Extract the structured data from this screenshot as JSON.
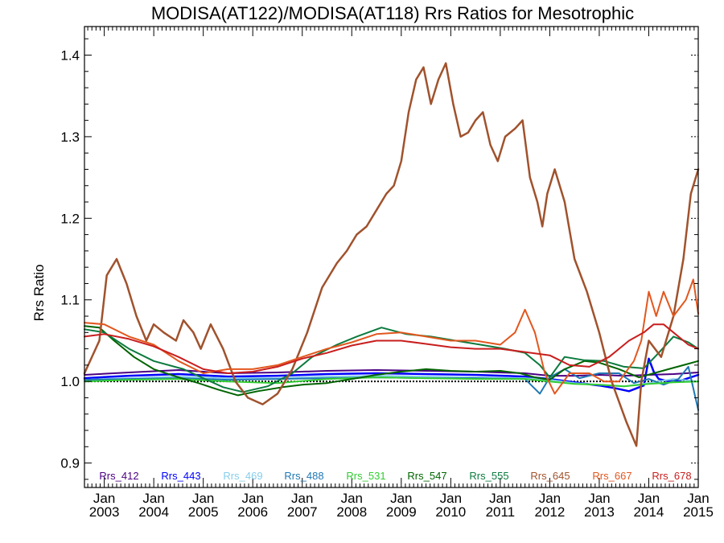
{
  "chart_data": {
    "type": "line",
    "title": "MODISA(AT122)/MODISA(AT118)  Rrs Ratios for Mesotrophic",
    "ylabel": "Rrs Ratio",
    "xlabel": "",
    "xlim": [
      2002.6,
      2015.0
    ],
    "ylim": [
      0.87,
      1.435
    ],
    "yticks": [
      0.9,
      1.0,
      1.1,
      1.2,
      1.3,
      1.4
    ],
    "ytick_labels": [
      "0.9",
      "1.0",
      "1.1",
      "1.2",
      "1.3",
      "1.4"
    ],
    "xticks": [
      2003,
      2004,
      2005,
      2006,
      2007,
      2008,
      2009,
      2010,
      2011,
      2012,
      2013,
      2014,
      2015
    ],
    "xtick_labels_top": [
      "Jan",
      "Jan",
      "Jan",
      "Jan",
      "Jan",
      "Jan",
      "Jan",
      "Jan",
      "Jan",
      "Jan",
      "Jan",
      "Jan",
      "Jan"
    ],
    "xtick_labels_bottom": [
      "2003",
      "2004",
      "2005",
      "2006",
      "2007",
      "2008",
      "2009",
      "2010",
      "2011",
      "2012",
      "2013",
      "2014",
      "2015"
    ],
    "reference_line": 1.0,
    "legend_placement": "bottom, inside plot",
    "series": [
      {
        "name": "Rrs_412",
        "color": "#4B0082",
        "width": 2,
        "x": [
          2002.6,
          2003.5,
          2004.5,
          2005.5,
          2006.5,
          2007.5,
          2008.5,
          2009.5,
          2010.5,
          2011.5,
          2012.0,
          2012.5,
          2013.0,
          2013.5,
          2014.0,
          2014.5,
          2015.0
        ],
        "y": [
          1.008,
          1.011,
          1.014,
          1.01,
          1.011,
          1.013,
          1.014,
          1.013,
          1.012,
          1.01,
          1.007,
          1.007,
          1.008,
          1.007,
          1.008,
          1.009,
          1.011
        ]
      },
      {
        "name": "Rrs_443",
        "color": "#0000FF",
        "width": 2.5,
        "x": [
          2002.6,
          2003.5,
          2004.5,
          2005.5,
          2006.5,
          2007.5,
          2008.5,
          2009.5,
          2010.5,
          2011.5,
          2012.0,
          2012.5,
          2013.0,
          2013.3,
          2013.6,
          2013.9,
          2014.0,
          2014.1,
          2014.2,
          2014.4,
          2014.7,
          2015.0
        ],
        "y": [
          1.004,
          1.007,
          1.009,
          1.006,
          1.007,
          1.009,
          1.01,
          1.009,
          1.008,
          1.006,
          1.003,
          0.999,
          0.995,
          0.992,
          0.988,
          0.995,
          1.028,
          1.012,
          1.003,
          1.0,
          1.002,
          1.008
        ]
      },
      {
        "name": "Rrs_469",
        "color": "#87CEEB",
        "width": 2,
        "x": [
          2002.6,
          2003.5,
          2004.5,
          2005.5,
          2006.5,
          2007.5,
          2008.5,
          2009.5,
          2010.5,
          2011.5,
          2012.0,
          2012.5,
          2013.0,
          2013.5,
          2014.0,
          2014.5,
          2015.0
        ],
        "y": [
          1.002,
          1.004,
          1.006,
          1.004,
          1.004,
          1.006,
          1.007,
          1.006,
          1.005,
          1.004,
          1.002,
          0.998,
          0.996,
          0.994,
          0.998,
          1.003,
          1.0
        ]
      },
      {
        "name": "Rrs_488",
        "color": "#1F78B4",
        "width": 2,
        "x": [
          2002.6,
          2003.5,
          2004.5,
          2005.5,
          2006.5,
          2007.5,
          2008.5,
          2009.5,
          2010.5,
          2011.5,
          2011.8,
          2012.0,
          2012.3,
          2012.6,
          2013.0,
          2013.4,
          2013.7,
          2014.0,
          2014.3,
          2014.6,
          2014.8,
          2015.0
        ],
        "y": [
          1.002,
          1.003,
          1.004,
          1.002,
          1.003,
          1.004,
          1.005,
          1.004,
          1.004,
          1.003,
          0.985,
          1.005,
          1.015,
          1.004,
          1.01,
          1.01,
          0.998,
          1.003,
          0.996,
          1.003,
          1.018,
          0.965
        ]
      },
      {
        "name": "Rrs_531",
        "color": "#32CD32",
        "width": 2,
        "x": [
          2002.6,
          2003.5,
          2004.5,
          2005.5,
          2006.5,
          2007.5,
          2008.5,
          2009.5,
          2010.5,
          2011.5,
          2012.0,
          2012.5,
          2013.0,
          2013.5,
          2014.0,
          2014.5,
          2015.0
        ],
        "y": [
          1.0,
          1.002,
          1.003,
          1.0,
          0.998,
          1.003,
          1.005,
          1.004,
          1.003,
          1.003,
          1.0,
          0.997,
          0.996,
          0.994,
          0.997,
          0.999,
          1.0
        ]
      },
      {
        "name": "Rrs_547",
        "color": "#006400",
        "width": 2,
        "x": [
          2002.6,
          2002.9,
          2003.2,
          2003.6,
          2004.0,
          2004.5,
          2004.9,
          2005.3,
          2005.7,
          2006.1,
          2006.6,
          2007.0,
          2007.5,
          2008.0,
          2008.5,
          2009.0,
          2009.5,
          2010.0,
          2010.5,
          2011.0,
          2011.4,
          2011.7,
          2012.0,
          2012.3,
          2012.7,
          2013.0,
          2013.4,
          2013.8,
          2014.1,
          2014.4,
          2014.7,
          2015.0
        ],
        "y": [
          1.068,
          1.066,
          1.05,
          1.03,
          1.015,
          1.005,
          0.998,
          0.99,
          0.983,
          0.988,
          0.993,
          0.996,
          0.998,
          1.003,
          1.008,
          1.012,
          1.015,
          1.013,
          1.012,
          1.013,
          1.01,
          1.005,
          1.002,
          1.015,
          1.025,
          1.023,
          1.015,
          1.005,
          1.01,
          1.015,
          1.02,
          1.025
        ]
      },
      {
        "name": "Rrs_555",
        "color": "#0B7A3E",
        "width": 2,
        "x": [
          2002.6,
          2003.0,
          2003.5,
          2004.0,
          2004.6,
          2005.0,
          2005.4,
          2005.8,
          2006.3,
          2006.8,
          2007.2,
          2007.7,
          2008.1,
          2008.6,
          2009.1,
          2009.6,
          2010.1,
          2010.6,
          2011.1,
          2011.5,
          2011.8,
          2012.0,
          2012.3,
          2012.7,
          2013.1,
          2013.5,
          2013.9,
          2014.2,
          2014.5,
          2014.8,
          2015.0
        ],
        "y": [
          1.064,
          1.06,
          1.04,
          1.025,
          1.015,
          1.004,
          0.993,
          0.987,
          0.994,
          1.01,
          1.03,
          1.045,
          1.055,
          1.066,
          1.058,
          1.055,
          1.05,
          1.045,
          1.04,
          1.035,
          1.02,
          1.005,
          1.03,
          1.026,
          1.025,
          1.018,
          1.016,
          1.035,
          1.055,
          1.048,
          1.04
        ]
      },
      {
        "name": "Rrs_645",
        "color": "#A0522D",
        "width": 2.5,
        "x": [
          2002.6,
          2002.9,
          2003.05,
          2003.25,
          2003.45,
          2003.65,
          2003.85,
          2004.0,
          2004.2,
          2004.45,
          2004.6,
          2004.8,
          2004.95,
          2005.15,
          2005.4,
          2005.65,
          2005.9,
          2006.2,
          2006.5,
          2006.8,
          2007.1,
          2007.4,
          2007.7,
          2007.9,
          2008.1,
          2008.3,
          2008.5,
          2008.7,
          2008.85,
          2009.0,
          2009.15,
          2009.3,
          2009.45,
          2009.6,
          2009.75,
          2009.9,
          2010.05,
          2010.2,
          2010.35,
          2010.5,
          2010.65,
          2010.8,
          2010.95,
          2011.1,
          2011.3,
          2011.45,
          2011.6,
          2011.75,
          2011.85,
          2011.95,
          2012.1,
          2012.3,
          2012.5,
          2012.75,
          2013.0,
          2013.25,
          2013.55,
          2013.75,
          2013.85,
          2014.0,
          2014.25,
          2014.5,
          2014.7,
          2014.85,
          2015.0
        ],
        "y": [
          1.01,
          1.05,
          1.13,
          1.15,
          1.12,
          1.08,
          1.05,
          1.07,
          1.06,
          1.05,
          1.075,
          1.06,
          1.04,
          1.07,
          1.04,
          1.0,
          0.98,
          0.972,
          0.985,
          1.015,
          1.06,
          1.115,
          1.145,
          1.16,
          1.18,
          1.19,
          1.21,
          1.23,
          1.24,
          1.27,
          1.33,
          1.37,
          1.385,
          1.34,
          1.37,
          1.39,
          1.34,
          1.3,
          1.305,
          1.32,
          1.33,
          1.29,
          1.27,
          1.3,
          1.31,
          1.32,
          1.25,
          1.22,
          1.19,
          1.23,
          1.26,
          1.22,
          1.15,
          1.11,
          1.06,
          1.0,
          0.95,
          0.921,
          1.0,
          1.05,
          1.03,
          1.08,
          1.15,
          1.23,
          1.26
        ]
      },
      {
        "name": "Rrs_667",
        "color": "#E2571E",
        "width": 2,
        "x": [
          2002.6,
          2003.0,
          2003.5,
          2004.0,
          2004.5,
          2005.0,
          2005.5,
          2006.0,
          2006.5,
          2007.0,
          2007.5,
          2008.0,
          2008.5,
          2009.0,
          2009.5,
          2010.0,
          2010.5,
          2011.0,
          2011.3,
          2011.5,
          2011.7,
          2011.9,
          2012.1,
          2012.4,
          2012.8,
          2013.1,
          2013.4,
          2013.7,
          2013.85,
          2014.0,
          2014.15,
          2014.3,
          2014.5,
          2014.75,
          2014.9,
          2015.0
        ],
        "y": [
          1.072,
          1.07,
          1.055,
          1.045,
          1.025,
          1.01,
          1.015,
          1.015,
          1.02,
          1.03,
          1.04,
          1.048,
          1.058,
          1.06,
          1.055,
          1.05,
          1.05,
          1.045,
          1.06,
          1.088,
          1.06,
          1.01,
          0.985,
          1.01,
          1.01,
          1.0,
          1.0,
          1.025,
          1.05,
          1.11,
          1.08,
          1.11,
          1.08,
          1.1,
          1.125,
          1.083
        ]
      },
      {
        "name": "Rrs_678",
        "color": "#C81E1E",
        "width": 2,
        "x": [
          2002.6,
          2003.0,
          2003.5,
          2004.0,
          2004.5,
          2005.0,
          2005.5,
          2006.0,
          2006.5,
          2007.0,
          2007.5,
          2008.0,
          2008.5,
          2009.0,
          2009.5,
          2010.0,
          2010.5,
          2011.0,
          2011.5,
          2012.0,
          2012.4,
          2012.8,
          2013.2,
          2013.6,
          2013.9,
          2014.1,
          2014.3,
          2014.5,
          2014.8,
          2015.0
        ],
        "y": [
          1.055,
          1.058,
          1.052,
          1.043,
          1.03,
          1.015,
          1.01,
          1.012,
          1.018,
          1.028,
          1.035,
          1.044,
          1.05,
          1.05,
          1.046,
          1.042,
          1.04,
          1.04,
          1.036,
          1.032,
          1.02,
          1.018,
          1.03,
          1.05,
          1.06,
          1.07,
          1.07,
          1.06,
          1.045,
          1.04
        ]
      }
    ]
  }
}
